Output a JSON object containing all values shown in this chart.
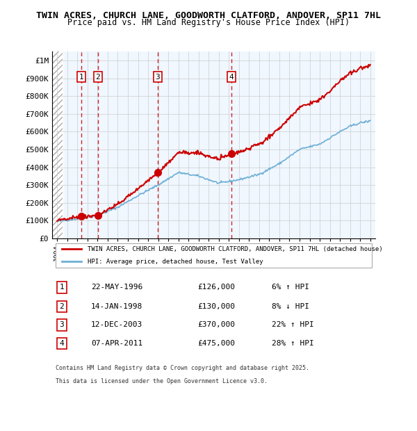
{
  "title": "TWIN ACRES, CHURCH LANE, GOODWORTH CLATFORD, ANDOVER, SP11 7HL",
  "subtitle": "Price paid vs. HM Land Registry's House Price Index (HPI)",
  "legend_line1": "TWIN ACRES, CHURCH LANE, GOODWORTH CLATFORD, ANDOVER, SP11 7HL (detached house)",
  "legend_line2": "HPI: Average price, detached house, Test Valley",
  "footer1": "Contains HM Land Registry data © Crown copyright and database right 2025.",
  "footer2": "This data is licensed under the Open Government Licence v3.0.",
  "transactions": [
    {
      "num": 1,
      "date": "22-MAY-1996",
      "year": 1996.39,
      "price": 126000,
      "pct": "6%",
      "dir": "↑"
    },
    {
      "num": 2,
      "date": "14-JAN-1998",
      "year": 1998.04,
      "price": 130000,
      "pct": "8%",
      "dir": "↓"
    },
    {
      "num": 3,
      "date": "12-DEC-2003",
      "year": 2003.95,
      "price": 370000,
      "pct": "22%",
      "dir": "↑"
    },
    {
      "num": 4,
      "date": "07-APR-2011",
      "year": 2011.27,
      "price": 475000,
      "pct": "28%",
      "dir": "↑"
    }
  ],
  "hpi_color": "#6dafd4",
  "price_color": "#cc0000",
  "dashed_color": "#cc0000",
  "hatched_color": "#ddeeff",
  "background_color": "#ddeeff",
  "xlim": [
    1993.5,
    2025.5
  ],
  "ylim": [
    0,
    1050000
  ],
  "yticks": [
    0,
    100000,
    200000,
    300000,
    400000,
    500000,
    600000,
    700000,
    800000,
    900000,
    1000000
  ],
  "ytick_labels": [
    "£0",
    "£100K",
    "£200K",
    "£300K",
    "£400K",
    "£500K",
    "£600K",
    "£700K",
    "£800K",
    "£900K",
    "£1M"
  ]
}
